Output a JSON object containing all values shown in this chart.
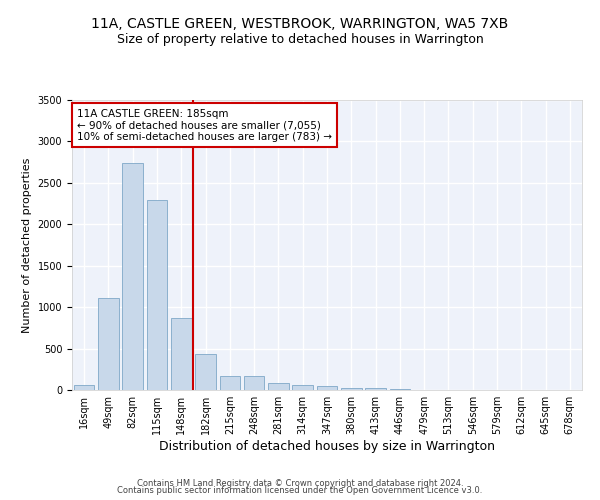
{
  "title": "11A, CASTLE GREEN, WESTBROOK, WARRINGTON, WA5 7XB",
  "subtitle": "Size of property relative to detached houses in Warrington",
  "xlabel": "Distribution of detached houses by size in Warrington",
  "ylabel": "Number of detached properties",
  "bar_color": "#c8d8ea",
  "bar_edge_color": "#7fa8c8",
  "background_color": "#eef2fa",
  "grid_color": "#ffffff",
  "categories": [
    "16sqm",
    "49sqm",
    "82sqm",
    "115sqm",
    "148sqm",
    "182sqm",
    "215sqm",
    "248sqm",
    "281sqm",
    "314sqm",
    "347sqm",
    "380sqm",
    "413sqm",
    "446sqm",
    "479sqm",
    "513sqm",
    "546sqm",
    "579sqm",
    "612sqm",
    "645sqm",
    "678sqm"
  ],
  "values": [
    55,
    1110,
    2740,
    2290,
    870,
    430,
    175,
    165,
    90,
    60,
    50,
    30,
    30,
    10,
    5,
    5,
    2,
    0,
    0,
    0,
    0
  ],
  "vline_x_index": 5,
  "vline_color": "#cc0000",
  "annotation_line1": "11A CASTLE GREEN: 185sqm",
  "annotation_line2": "← 90% of detached houses are smaller (7,055)",
  "annotation_line3": "10% of semi-detached houses are larger (783) →",
  "annotation_box_color": "#cc0000",
  "ylim": [
    0,
    3500
  ],
  "yticks": [
    0,
    500,
    1000,
    1500,
    2000,
    2500,
    3000,
    3500
  ],
  "footer1": "Contains HM Land Registry data © Crown copyright and database right 2024.",
  "footer2": "Contains public sector information licensed under the Open Government Licence v3.0.",
  "title_fontsize": 10,
  "subtitle_fontsize": 9,
  "ylabel_fontsize": 8,
  "xlabel_fontsize": 9,
  "tick_fontsize": 7,
  "annotation_fontsize": 7.5,
  "footer_fontsize": 6
}
